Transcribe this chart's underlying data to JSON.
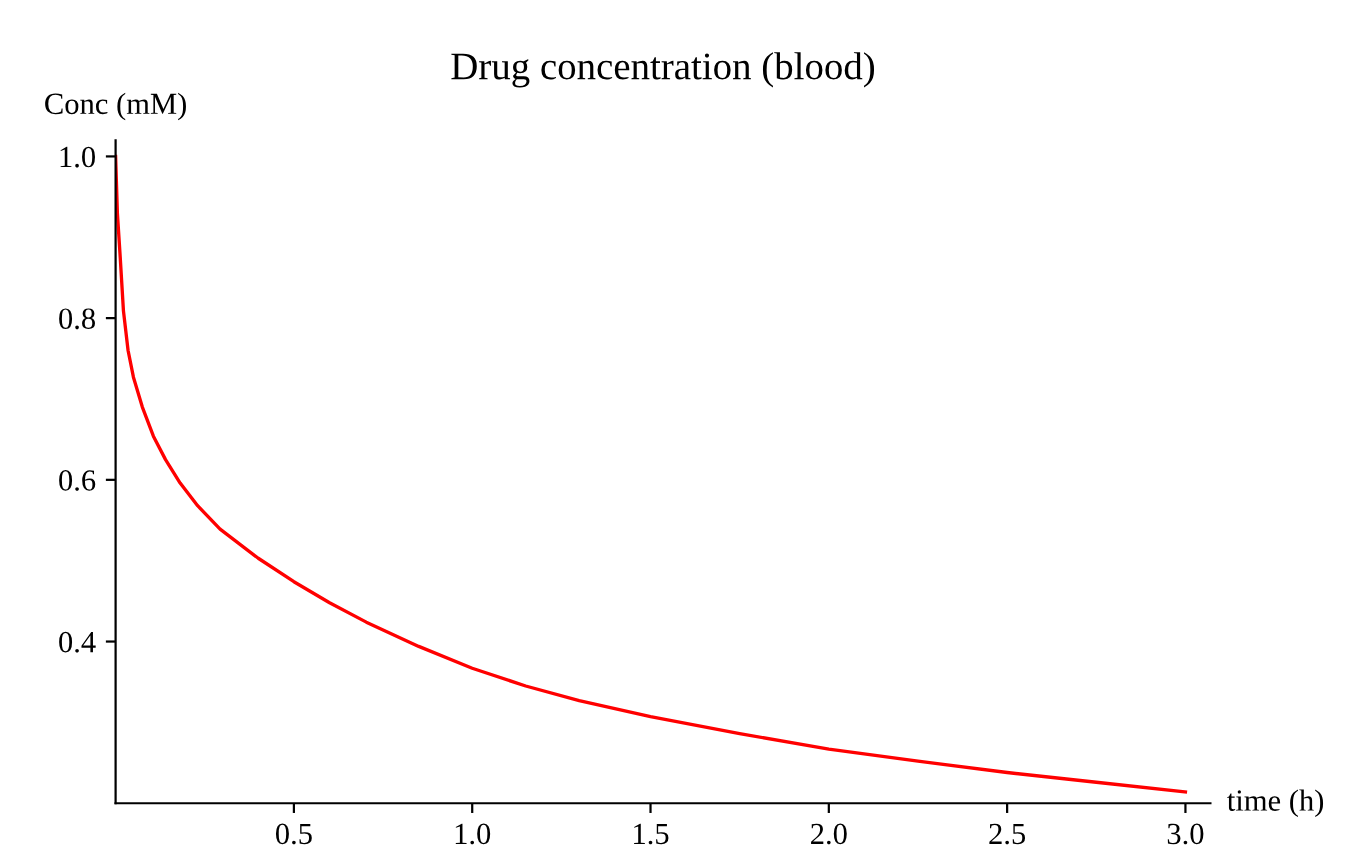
{
  "chart_data": {
    "type": "line",
    "title": "Drug concentration (blood)",
    "xlabel": "time (h)",
    "ylabel": "Conc (mM)",
    "x": [
      0,
      0.005,
      0.013,
      0.022,
      0.035,
      0.05,
      0.075,
      0.106,
      0.14,
      0.181,
      0.23,
      0.293,
      0.4,
      0.5,
      0.6,
      0.703,
      0.85,
      1.0,
      1.15,
      1.3,
      1.5,
      1.75,
      2.0,
      2.25,
      2.5,
      2.75,
      3.0
    ],
    "series": [
      {
        "color": "#ff0000",
        "values": [
          1.0,
          0.93,
          0.875,
          0.809,
          0.76,
          0.727,
          0.69,
          0.654,
          0.625,
          0.596,
          0.568,
          0.539,
          0.503,
          0.474,
          0.448,
          0.424,
          0.394,
          0.367,
          0.345,
          0.327,
          0.307,
          0.286,
          0.267,
          0.252,
          0.238,
          0.226,
          0.214
        ]
      }
    ],
    "xlim": [
      0,
      3.07
    ],
    "ylim": [
      0.2,
      1.02
    ],
    "xticks": [
      0.5,
      {
        "value": 1,
        "label": "1.0"
      },
      1.5,
      {
        "value": 2,
        "label": "2.0"
      },
      2.5,
      {
        "value": 3,
        "label": "3.0"
      }
    ],
    "yticks": [
      0.4,
      0.6,
      0.8,
      {
        "value": 1,
        "label": "1.0"
      }
    ],
    "grid": false,
    "marker": "none",
    "line_style": "solid"
  }
}
